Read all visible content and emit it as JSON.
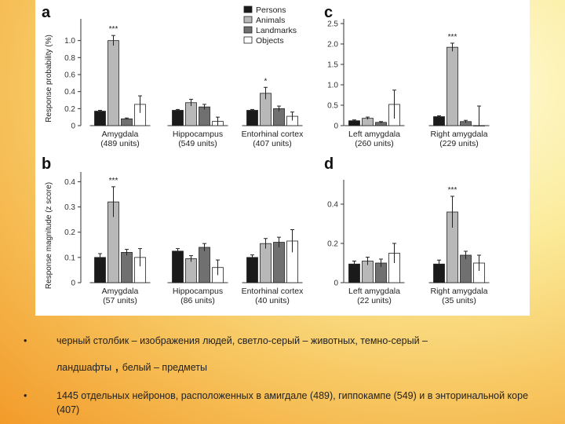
{
  "colors": {
    "persons": "#1a1a1a",
    "animals": "#b8b8b8",
    "landmarks": "#707070",
    "objects": "#ffffff"
  },
  "legend": {
    "items": [
      "Persons",
      "Animals",
      "Landmarks",
      "Objects"
    ]
  },
  "ylabels": {
    "probability": "Response probability (%)",
    "magnitude": "Response magnitude (z score)"
  },
  "bullets": [
    {
      "line1": "черный столбик – изображения людей, светло-серый – животных, темно-серый –",
      "line2a": "ландшафты",
      "comma": ",",
      "line2b": "белый – предметы"
    },
    {
      "text": "1445 отдельных нейронов, расположенных в амигдале (489), гиппокампе (549) и в энторинальной коре (407)"
    }
  ],
  "chart_data": [
    {
      "panel": "a",
      "type": "bar",
      "ylabel": "Response probability (%)",
      "ylim": [
        0,
        1.2
      ],
      "yticks": [
        "0",
        "0.2",
        "0.4",
        "0.6",
        "0.8",
        "1.0"
      ],
      "categories": [
        "Amygdala",
        "Hippocampus",
        "Entorhinal cortex"
      ],
      "category_units": [
        "(489 units)",
        "(549 units)",
        "(407 units)"
      ],
      "series": [
        {
          "name": "Persons",
          "values": [
            0.17,
            0.18,
            0.18
          ],
          "errors": [
            0.01,
            0.01,
            0.01
          ]
        },
        {
          "name": "Animals",
          "values": [
            1.0,
            0.27,
            0.38
          ],
          "errors": [
            0.06,
            0.04,
            0.07
          ]
        },
        {
          "name": "Landmarks",
          "values": [
            0.08,
            0.22,
            0.2
          ],
          "errors": [
            0.01,
            0.03,
            0.03
          ]
        },
        {
          "name": "Objects",
          "values": [
            0.25,
            0.05,
            0.11
          ],
          "errors": [
            0.1,
            0.05,
            0.05
          ]
        }
      ],
      "significance": [
        {
          "category": 0,
          "label": "***"
        },
        {
          "category": 2,
          "label": "*"
        }
      ]
    },
    {
      "panel": "b",
      "type": "bar",
      "ylabel": "Response magnitude (z score)",
      "ylim": [
        0,
        0.42
      ],
      "yticks": [
        "0",
        "0.1",
        "0.2",
        "0.3",
        "0.4"
      ],
      "categories": [
        "Amygdala",
        "Hippocampus",
        "Entorhinal cortex"
      ],
      "category_units": [
        "(57 units)",
        "(86 units)",
        "(40 units)"
      ],
      "series": [
        {
          "name": "Persons",
          "values": [
            0.1,
            0.125,
            0.1
          ],
          "errors": [
            0.015,
            0.01,
            0.01
          ]
        },
        {
          "name": "Animals",
          "values": [
            0.32,
            0.095,
            0.155
          ],
          "errors": [
            0.06,
            0.012,
            0.02
          ]
        },
        {
          "name": "Landmarks",
          "values": [
            0.12,
            0.14,
            0.16
          ],
          "errors": [
            0.012,
            0.015,
            0.02
          ]
        },
        {
          "name": "Objects",
          "values": [
            0.1,
            0.06,
            0.165
          ],
          "errors": [
            0.035,
            0.03,
            0.045
          ]
        }
      ],
      "significance": [
        {
          "category": 0,
          "label": "***"
        }
      ]
    },
    {
      "panel": "c",
      "type": "bar",
      "ylim": [
        0,
        2.5
      ],
      "yticks": [
        "0",
        "0.5",
        "1.0",
        "1.5",
        "2.0",
        "2.5"
      ],
      "categories": [
        "Left amygdala",
        "Right amygdala"
      ],
      "category_units": [
        "(260 units)",
        "(229 units)"
      ],
      "series": [
        {
          "name": "Persons",
          "values": [
            0.12,
            0.22
          ],
          "errors": [
            0.02,
            0.02
          ]
        },
        {
          "name": "Animals",
          "values": [
            0.18,
            1.92
          ],
          "errors": [
            0.03,
            0.1
          ]
        },
        {
          "name": "Landmarks",
          "values": [
            0.08,
            0.1
          ],
          "errors": [
            0.02,
            0.03
          ]
        },
        {
          "name": "Objects",
          "values": [
            0.52,
            0.0
          ],
          "errors": [
            0.35,
            0.48
          ]
        }
      ],
      "significance": [
        {
          "category": 1,
          "label": "***"
        }
      ]
    },
    {
      "panel": "d",
      "type": "bar",
      "ylim": [
        0,
        0.5
      ],
      "yticks": [
        "0",
        "0.2",
        "0.4"
      ],
      "categories": [
        "Left amygdala",
        "Right amygdala"
      ],
      "category_units": [
        "(22 units)",
        "(35 units)"
      ],
      "series": [
        {
          "name": "Persons",
          "values": [
            0.095,
            0.095
          ],
          "errors": [
            0.015,
            0.02
          ]
        },
        {
          "name": "Animals",
          "values": [
            0.11,
            0.36
          ],
          "errors": [
            0.02,
            0.08
          ]
        },
        {
          "name": "Landmarks",
          "values": [
            0.1,
            0.14
          ],
          "errors": [
            0.02,
            0.02
          ]
        },
        {
          "name": "Objects",
          "values": [
            0.15,
            0.1
          ],
          "errors": [
            0.05,
            0.04
          ]
        }
      ],
      "significance": [
        {
          "category": 1,
          "label": "***"
        }
      ]
    }
  ]
}
